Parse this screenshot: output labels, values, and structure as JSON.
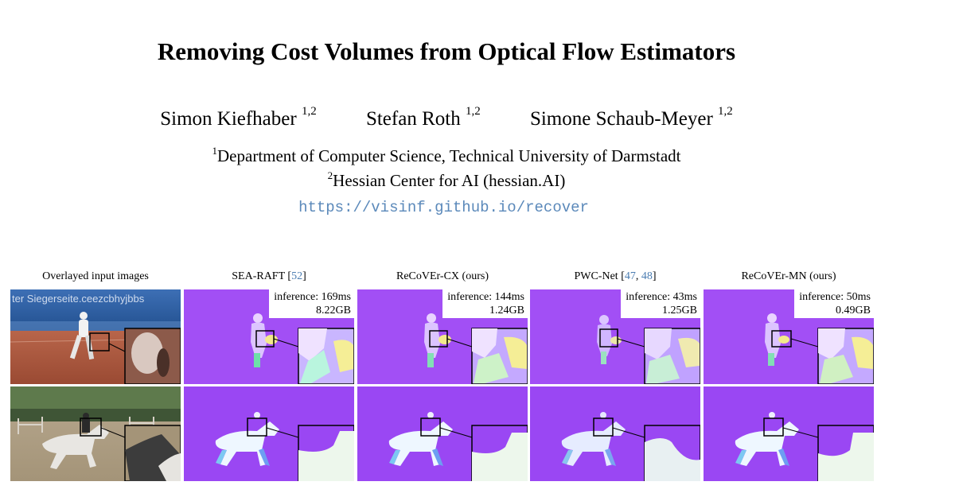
{
  "title": "Removing Cost Volumes from Optical Flow Estimators",
  "authors": [
    {
      "name": "Simon Kiefhaber",
      "affil": "1,2"
    },
    {
      "name": "Stefan Roth",
      "affil": "1,2"
    },
    {
      "name": "Simone Schaub-Meyer",
      "affil": "1,2"
    }
  ],
  "affiliations": [
    {
      "mark": "1",
      "text": "Department of Computer Science, Technical University of Darmstadt"
    },
    {
      "mark": "2",
      "text": "Hessian Center for AI (hessian.AI)"
    }
  ],
  "url": "https://visinf.github.io/recover",
  "figure": {
    "columns": [
      {
        "label": "Overlayed input images",
        "ref": "",
        "ref2": "",
        "sep": "",
        "open": "",
        "close": ""
      },
      {
        "label": "SEA-RAFT ",
        "open": "[",
        "ref": "52",
        "sep": "",
        "ref2": "",
        "close": "]"
      },
      {
        "label": "ReCoVEr-CX (ours)",
        "open": "",
        "ref": "",
        "sep": "",
        "ref2": "",
        "close": ""
      },
      {
        "label": "PWC-Net ",
        "open": "[",
        "ref": "47",
        "sep": ", ",
        "ref2": "48",
        "close": "]"
      },
      {
        "label": "ReCoVEr-MN (ours)",
        "open": "",
        "ref": "",
        "sep": "",
        "ref2": "",
        "close": ""
      }
    ],
    "badges": [
      {
        "time": "inference: 169ms",
        "mem": "8.22GB"
      },
      {
        "time": "inference: 144ms",
        "mem": "1.24GB"
      },
      {
        "time": "inference: 43ms",
        "mem": "1.25GB"
      },
      {
        "time": "inference: 50ms",
        "mem": "0.49GB"
      }
    ],
    "banner_text": "ter Siegerseite.ceezcbhyjbbs",
    "colors": {
      "flow_purple": "#a24ff5",
      "flow_purple_light": "#b86df7",
      "ref_link": "#4b7db2",
      "url_link": "#5b89ba"
    }
  }
}
